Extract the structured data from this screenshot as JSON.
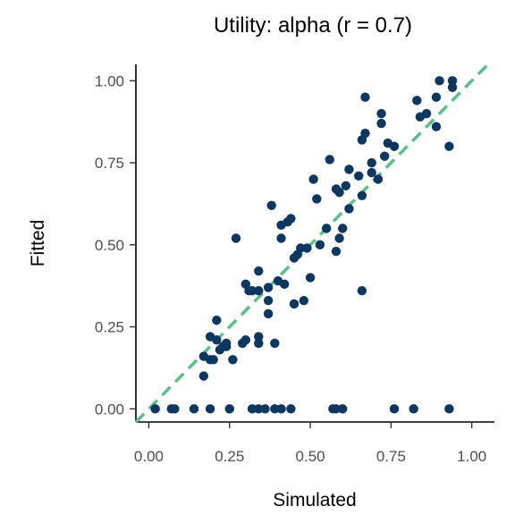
{
  "chart_data": {
    "type": "scatter",
    "title": "Utility: alpha (r = 0.7)",
    "xlabel": "Simulated",
    "ylabel": "Fitted",
    "xlim": [
      -0.04,
      1.07
    ],
    "ylim": [
      -0.04,
      1.05
    ],
    "xticks": [
      0.0,
      0.25,
      0.5,
      0.75,
      1.0
    ],
    "xtick_labels": [
      "0.00",
      "0.25",
      "0.50",
      "0.75",
      "1.00"
    ],
    "yticks": [
      0.0,
      0.25,
      0.5,
      0.75,
      1.0
    ],
    "ytick_labels": [
      "0.00",
      "0.25",
      "0.50",
      "0.75",
      "1.00"
    ],
    "grid": false,
    "point_color": "#0c3761",
    "reference_line": {
      "slope": 1,
      "intercept": 0,
      "style": "dashed",
      "color": "#5bbf88"
    },
    "points": [
      [
        0.02,
        0.0
      ],
      [
        0.07,
        0.0
      ],
      [
        0.08,
        0.0
      ],
      [
        0.14,
        0.0
      ],
      [
        0.19,
        0.0
      ],
      [
        0.25,
        0.0
      ],
      [
        0.32,
        0.0
      ],
      [
        0.34,
        0.0
      ],
      [
        0.36,
        0.0
      ],
      [
        0.39,
        0.0
      ],
      [
        0.41,
        0.0
      ],
      [
        0.44,
        0.0
      ],
      [
        0.57,
        0.0
      ],
      [
        0.58,
        0.0
      ],
      [
        0.6,
        0.0
      ],
      [
        0.76,
        0.0
      ],
      [
        0.82,
        0.0
      ],
      [
        0.93,
        0.0
      ],
      [
        0.17,
        0.1
      ],
      [
        0.17,
        0.16
      ],
      [
        0.19,
        0.15
      ],
      [
        0.2,
        0.15
      ],
      [
        0.19,
        0.22
      ],
      [
        0.21,
        0.27
      ],
      [
        0.21,
        0.21
      ],
      [
        0.22,
        0.18
      ],
      [
        0.23,
        0.19
      ],
      [
        0.24,
        0.2
      ],
      [
        0.26,
        0.15
      ],
      [
        0.29,
        0.2
      ],
      [
        0.3,
        0.21
      ],
      [
        0.32,
        0.36
      ],
      [
        0.34,
        0.42
      ],
      [
        0.34,
        0.22
      ],
      [
        0.34,
        0.2
      ],
      [
        0.37,
        0.33
      ],
      [
        0.37,
        0.29
      ],
      [
        0.37,
        0.37
      ],
      [
        0.38,
        0.62
      ],
      [
        0.39,
        0.2
      ],
      [
        0.4,
        0.39
      ],
      [
        0.42,
        0.38
      ],
      [
        0.41,
        0.56
      ],
      [
        0.43,
        0.57
      ],
      [
        0.44,
        0.58
      ],
      [
        0.45,
        0.32
      ],
      [
        0.45,
        0.46
      ],
      [
        0.46,
        0.47
      ],
      [
        0.47,
        0.49
      ],
      [
        0.48,
        0.33
      ],
      [
        0.49,
        0.49
      ],
      [
        0.5,
        0.4
      ],
      [
        0.51,
        0.7
      ],
      [
        0.52,
        0.64
      ],
      [
        0.53,
        0.5
      ],
      [
        0.55,
        0.55
      ],
      [
        0.56,
        0.76
      ],
      [
        0.58,
        0.67
      ],
      [
        0.59,
        0.66
      ],
      [
        0.58,
        0.48
      ],
      [
        0.59,
        0.52
      ],
      [
        0.6,
        0.55
      ],
      [
        0.61,
        0.68
      ],
      [
        0.62,
        0.73
      ],
      [
        0.62,
        0.61
      ],
      [
        0.65,
        0.71
      ],
      [
        0.66,
        0.65
      ],
      [
        0.66,
        0.82
      ],
      [
        0.67,
        0.84
      ],
      [
        0.67,
        0.95
      ],
      [
        0.69,
        0.75
      ],
      [
        0.69,
        0.72
      ],
      [
        0.71,
        0.7
      ],
      [
        0.72,
        0.87
      ],
      [
        0.72,
        0.9
      ],
      [
        0.73,
        0.77
      ],
      [
        0.74,
        0.81
      ],
      [
        0.76,
        0.8
      ],
      [
        0.83,
        0.94
      ],
      [
        0.84,
        0.89
      ],
      [
        0.86,
        0.9
      ],
      [
        0.89,
        0.86
      ],
      [
        0.89,
        0.95
      ],
      [
        0.9,
        1.0
      ],
      [
        0.93,
        0.8
      ],
      [
        0.94,
        1.0
      ],
      [
        0.94,
        0.98
      ],
      [
        0.24,
        0.19
      ],
      [
        0.27,
        0.52
      ],
      [
        0.34,
        0.36
      ],
      [
        0.41,
        0.52
      ],
      [
        0.66,
        0.36
      ],
      [
        0.3,
        0.38
      ],
      [
        0.31,
        0.36
      ]
    ]
  }
}
